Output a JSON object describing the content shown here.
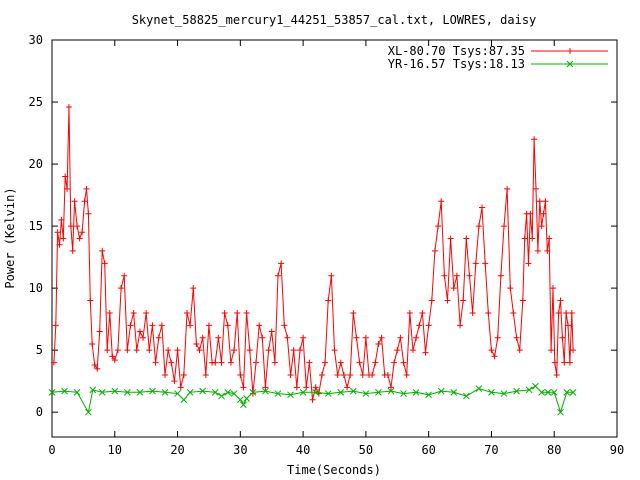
{
  "chart_data": {
    "type": "line",
    "title": "Skynet_58825_mercury1_44251_53857_cal.txt, LOWRES, daisy",
    "xlabel": "Time(Seconds)",
    "ylabel": "Power (Kelvin)",
    "xlim": [
      0,
      90
    ],
    "ylim": [
      -2,
      30
    ],
    "x_ticks": [
      0,
      10,
      20,
      30,
      40,
      50,
      60,
      70,
      80,
      90
    ],
    "y_ticks": [
      0,
      5,
      10,
      15,
      20,
      25,
      30
    ],
    "grid": false,
    "legend_position": "top-right",
    "series": [
      {
        "name": "XL-80.70 Tsys:87.35",
        "color": "#ff0000",
        "marker": "plus",
        "x": [
          0.3,
          0.6,
          0.9,
          1.2,
          1.5,
          1.8,
          2.1,
          2.4,
          2.7,
          3.0,
          3.3,
          3.6,
          4.0,
          4.4,
          4.8,
          5.2,
          5.5,
          5.8,
          6.1,
          6.4,
          6.8,
          7.2,
          7.6,
          8.0,
          8.4,
          8.8,
          9.2,
          9.6,
          10.0,
          10.5,
          11.0,
          11.5,
          12.0,
          12.5,
          13.0,
          13.5,
          14.0,
          14.5,
          15.0,
          15.5,
          16.0,
          16.5,
          17.0,
          17.5,
          18.0,
          18.5,
          19.0,
          19.5,
          20.0,
          20.5,
          21.0,
          21.5,
          22.0,
          22.5,
          23.0,
          23.5,
          24.0,
          24.5,
          25.0,
          25.5,
          26.0,
          26.5,
          27.0,
          27.5,
          28.0,
          28.5,
          29.0,
          29.5,
          30.0,
          30.5,
          31.0,
          31.5,
          32.0,
          32.5,
          33.0,
          33.5,
          34.0,
          34.5,
          35.0,
          35.5,
          36.0,
          36.5,
          37.0,
          37.5,
          38.0,
          38.5,
          39.0,
          39.5,
          40.0,
          40.5,
          41.0,
          41.5,
          42.0,
          42.5,
          43.0,
          43.5,
          44.0,
          44.5,
          45.0,
          45.5,
          46.0,
          46.5,
          47.0,
          47.5,
          48.0,
          48.5,
          49.0,
          49.5,
          50.0,
          50.5,
          51.0,
          51.5,
          52.0,
          52.5,
          53.0,
          53.5,
          54.0,
          54.5,
          55.0,
          55.5,
          56.0,
          56.5,
          57.0,
          57.5,
          58.0,
          58.5,
          59.0,
          59.5,
          60.0,
          60.5,
          61.0,
          61.5,
          62.0,
          62.5,
          63.0,
          63.5,
          64.0,
          64.5,
          65.0,
          65.5,
          66.0,
          66.5,
          67.0,
          67.5,
          68.0,
          68.5,
          69.0,
          69.5,
          70.0,
          70.5,
          71.0,
          71.5,
          72.0,
          72.5,
          73.0,
          73.5,
          74.0,
          74.5,
          75.0,
          75.3,
          75.6,
          75.9,
          76.2,
          76.5,
          76.8,
          77.1,
          77.4,
          77.7,
          78.0,
          78.3,
          78.6,
          78.9,
          79.2,
          79.5,
          79.8,
          80.1,
          80.4,
          80.7,
          81.0,
          81.3,
          81.6,
          81.9,
          82.2,
          82.5,
          82.8,
          83.0
        ],
        "y": [
          4,
          7,
          14.5,
          13.5,
          15.5,
          14,
          19,
          18,
          24.6,
          15,
          13,
          17,
          15,
          14,
          14.5,
          17,
          18,
          16,
          9,
          5.5,
          3.8,
          3.5,
          6.5,
          13,
          12,
          5,
          8,
          4.5,
          4.2,
          5,
          10,
          11,
          5,
          7,
          8,
          5,
          6.5,
          6,
          8,
          5,
          7,
          4,
          6,
          7,
          3,
          5,
          4,
          2.5,
          5,
          2,
          3,
          8,
          7,
          10,
          5.5,
          5,
          6,
          3,
          7,
          4,
          4,
          6,
          4,
          8,
          7,
          4,
          5,
          8,
          3,
          2,
          8,
          5,
          1.5,
          4,
          7,
          6,
          2,
          5,
          6.5,
          4,
          11,
          12,
          7,
          6,
          3,
          5,
          2,
          5,
          6,
          2,
          4,
          1,
          2,
          1.5,
          3,
          4,
          9,
          11,
          5,
          3,
          4,
          3,
          2,
          3,
          8,
          6,
          4,
          3,
          6,
          3,
          3,
          4,
          5.5,
          6,
          3,
          3,
          2,
          4,
          5,
          6,
          4,
          3,
          8,
          5,
          6,
          7,
          8,
          4.8,
          7,
          9,
          13,
          15,
          17,
          11,
          9,
          14,
          10,
          11,
          7,
          9,
          14,
          11,
          8,
          12,
          15,
          16.5,
          12,
          8,
          5,
          4.5,
          6,
          11,
          15,
          18,
          10,
          8,
          6,
          5,
          9,
          14,
          16,
          12,
          16,
          14,
          22,
          18,
          13,
          17,
          15,
          16,
          17,
          13,
          14,
          5,
          10,
          4,
          3,
          8,
          9,
          6,
          4,
          8,
          7,
          4,
          8,
          5
        ]
      },
      {
        "name": "YR-16.57 Tsys:18.13",
        "color": "#00b000",
        "marker": "x",
        "x": [
          0,
          2,
          4,
          5.8,
          6.5,
          8,
          10,
          12,
          14,
          16,
          18,
          20,
          21,
          22,
          24,
          26,
          27,
          28,
          29,
          30,
          30.5,
          31,
          32,
          34,
          36,
          38,
          40,
          42,
          44,
          46,
          48,
          50,
          52,
          54,
          56,
          58,
          60,
          62,
          64,
          66,
          68,
          70,
          72,
          74,
          76,
          77,
          78,
          79,
          80,
          81,
          82,
          83
        ],
        "y": [
          1.6,
          1.7,
          1.6,
          0,
          1.8,
          1.6,
          1.7,
          1.6,
          1.6,
          1.7,
          1.6,
          1.5,
          1,
          1.6,
          1.7,
          1.6,
          1.3,
          1.6,
          1.5,
          1,
          0.6,
          1.1,
          1.6,
          1.7,
          1.5,
          1.4,
          1.6,
          1.6,
          1.5,
          1.6,
          1.7,
          1.5,
          1.6,
          1.7,
          1.5,
          1.6,
          1.4,
          1.7,
          1.6,
          1.3,
          1.9,
          1.6,
          1.5,
          1.7,
          1.8,
          2.1,
          1.6,
          1.6,
          1.6,
          0,
          1.6,
          1.6
        ]
      }
    ]
  }
}
